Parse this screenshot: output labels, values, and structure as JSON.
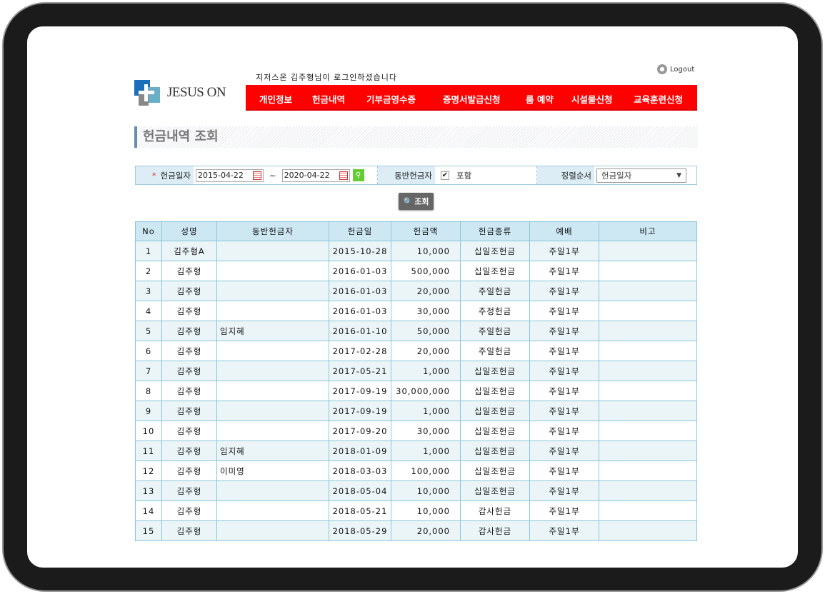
{
  "header": {
    "logo_text": "JESUS ON",
    "welcome": "지저스온 김주형님이 로그인하셨습니다",
    "logout": "Logout"
  },
  "nav": [
    "개인정보",
    "헌금내역",
    "기부금영수증",
    "증명서발급신청",
    "룸 예약",
    "시설물신청",
    "교육훈련신청"
  ],
  "page_title": "헌금내역 조회",
  "filter": {
    "date_label": "헌금일자",
    "date_from": "2015-04-22",
    "date_sep": "~",
    "date_to": "2020-04-22",
    "companion_label": "동반헌금자",
    "include_label": "포함",
    "include_checked": true,
    "sort_label": "정렬순서",
    "sort_value": "헌금일자"
  },
  "search_button": "조회",
  "table": {
    "headers": [
      "No",
      "성명",
      "동반헌금자",
      "헌금일",
      "헌금액",
      "헌금종류",
      "예배",
      "비고"
    ],
    "rows": [
      [
        "1",
        "김주형A",
        "",
        "2015-10-28",
        "10,000",
        "십일조헌금",
        "주일1부",
        ""
      ],
      [
        "2",
        "김주형",
        "",
        "2016-01-03",
        "500,000",
        "십일조헌금",
        "주일1부",
        ""
      ],
      [
        "3",
        "김주형",
        "",
        "2016-01-03",
        "20,000",
        "주일헌금",
        "주일1부",
        ""
      ],
      [
        "4",
        "김주형",
        "",
        "2016-01-03",
        "30,000",
        "주정헌금",
        "주일1부",
        ""
      ],
      [
        "5",
        "김주형",
        "임지혜",
        "2016-01-10",
        "50,000",
        "주일헌금",
        "주일1부",
        ""
      ],
      [
        "6",
        "김주형",
        "",
        "2017-02-28",
        "20,000",
        "주일헌금",
        "주일1부",
        ""
      ],
      [
        "7",
        "김주형",
        "",
        "2017-05-21",
        "1,000",
        "십일조헌금",
        "주일1부",
        ""
      ],
      [
        "8",
        "김주형",
        "",
        "2017-09-19",
        "30,000,000",
        "십일조헌금",
        "주일1부",
        ""
      ],
      [
        "9",
        "김주형",
        "",
        "2017-09-19",
        "1,000",
        "십일조헌금",
        "주일1부",
        ""
      ],
      [
        "10",
        "김주형",
        "",
        "2017-09-20",
        "30,000",
        "십일조헌금",
        "주일1부",
        ""
      ],
      [
        "11",
        "김주형",
        "임지혜",
        "2018-01-09",
        "1,000",
        "십일조헌금",
        "주일1부",
        ""
      ],
      [
        "12",
        "김주형",
        "이미영",
        "2018-03-03",
        "100,000",
        "십일조헌금",
        "주일1부",
        ""
      ],
      [
        "13",
        "김주형",
        "",
        "2018-05-04",
        "10,000",
        "십일조헌금",
        "주일1부",
        ""
      ],
      [
        "14",
        "김주형",
        "",
        "2018-05-21",
        "10,000",
        "감사헌금",
        "주일1부",
        ""
      ],
      [
        "15",
        "김주형",
        "",
        "2018-05-29",
        "20,000",
        "감사헌금",
        "주일1부",
        ""
      ]
    ]
  },
  "colors": {
    "nav": "#fe0000",
    "table_header": "#cde7f3",
    "table_border": "#88c6dc"
  }
}
